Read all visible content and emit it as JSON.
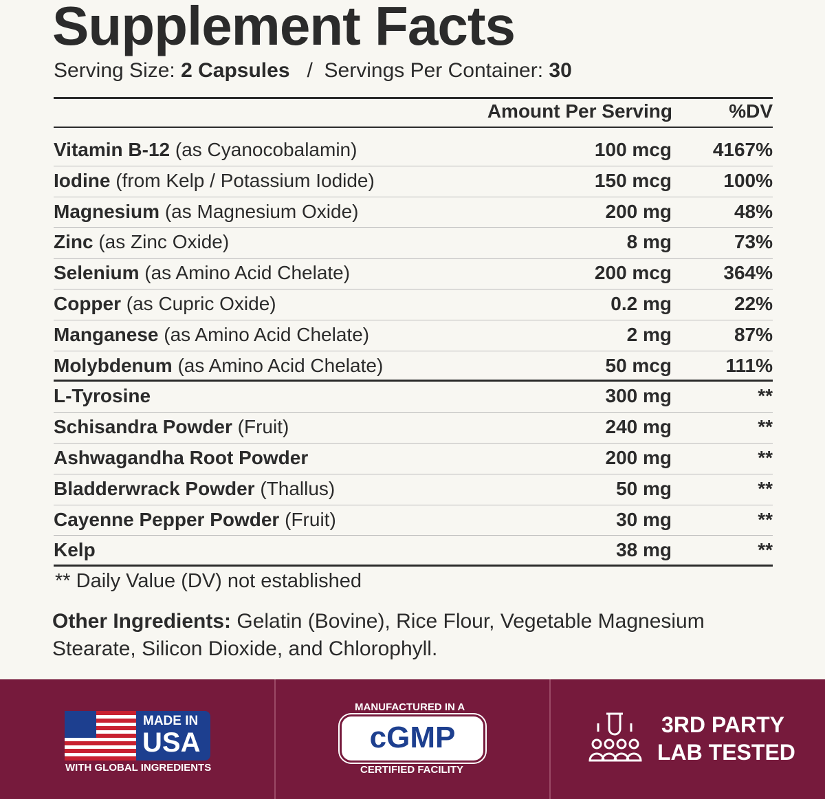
{
  "title": "Supplement Facts",
  "serving": {
    "size_label": "Serving Size:",
    "size": "2 Capsules",
    "separator": "/",
    "per_container_label": "Servings Per Container:",
    "per_container": "30"
  },
  "table": {
    "headers": [
      "Amount Per Serving",
      "%DV"
    ],
    "rows": [
      {
        "name": "Vitamin B-12",
        "detail": "(as Cyanocobalamin)",
        "amount": "100 mcg",
        "dv": "4167%"
      },
      {
        "name": "Iodine",
        "detail": "(from Kelp / Potassium Iodide)",
        "amount": "150 mcg",
        "dv": "100%"
      },
      {
        "name": "Magnesium",
        "detail": "(as Magnesium Oxide)",
        "amount": "200 mg",
        "dv": "48%"
      },
      {
        "name": "Zinc",
        "detail": "(as Zinc Oxide)",
        "amount": "8 mg",
        "dv": "73%"
      },
      {
        "name": "Selenium",
        "detail": "(as Amino Acid Chelate)",
        "amount": "200 mcg",
        "dv": "364%"
      },
      {
        "name": "Copper",
        "detail": "(as Cupric Oxide)",
        "amount": "0.2 mg",
        "dv": "22%"
      },
      {
        "name": "Manganese",
        "detail": "(as Amino Acid Chelate)",
        "amount": "2 mg",
        "dv": "87%"
      },
      {
        "name": "Molybdenum",
        "detail": "(as Amino Acid Chelate)",
        "amount": "50 mcg",
        "dv": "111%"
      },
      {
        "name": "L-Tyrosine",
        "amount": "300 mg",
        "dv": "**"
      },
      {
        "name": "Schisandra Powder",
        "detail": "(Fruit)",
        "amount": "240 mg",
        "dv": "**"
      },
      {
        "name": "Ashwagandha Root Powder",
        "amount": "200 mg",
        "dv": "**"
      },
      {
        "name": "Bladderwrack Powder",
        "detail": "(Thallus)",
        "amount": "50 mg",
        "dv": "**"
      },
      {
        "name": "Cayenne Pepper Powder",
        "detail": "(Fruit)",
        "amount": "30 mg",
        "dv": "**"
      },
      {
        "name": "Kelp",
        "amount": "38 mg",
        "dv": "**"
      }
    ]
  },
  "footnote": "** Daily Value (DV) not established",
  "other_ingredients": {
    "label": "Other Ingredients:",
    "text": "Gelatin (Bovine), Rice Flour, Vegetable Magnesium Stearate, Silicon Dioxide, and Chlorophyll."
  },
  "badges": [
    {
      "top": "MADE IN",
      "main": "USA",
      "bottom": "WITH GLOBAL INGREDIENTS"
    },
    {
      "top": "MANUFACTURED IN A",
      "main": "cGMP",
      "bottom": "CERTIFIED FACILITY"
    },
    {
      "top": "3RD PARTY",
      "main": "LAB TESTED"
    }
  ]
}
